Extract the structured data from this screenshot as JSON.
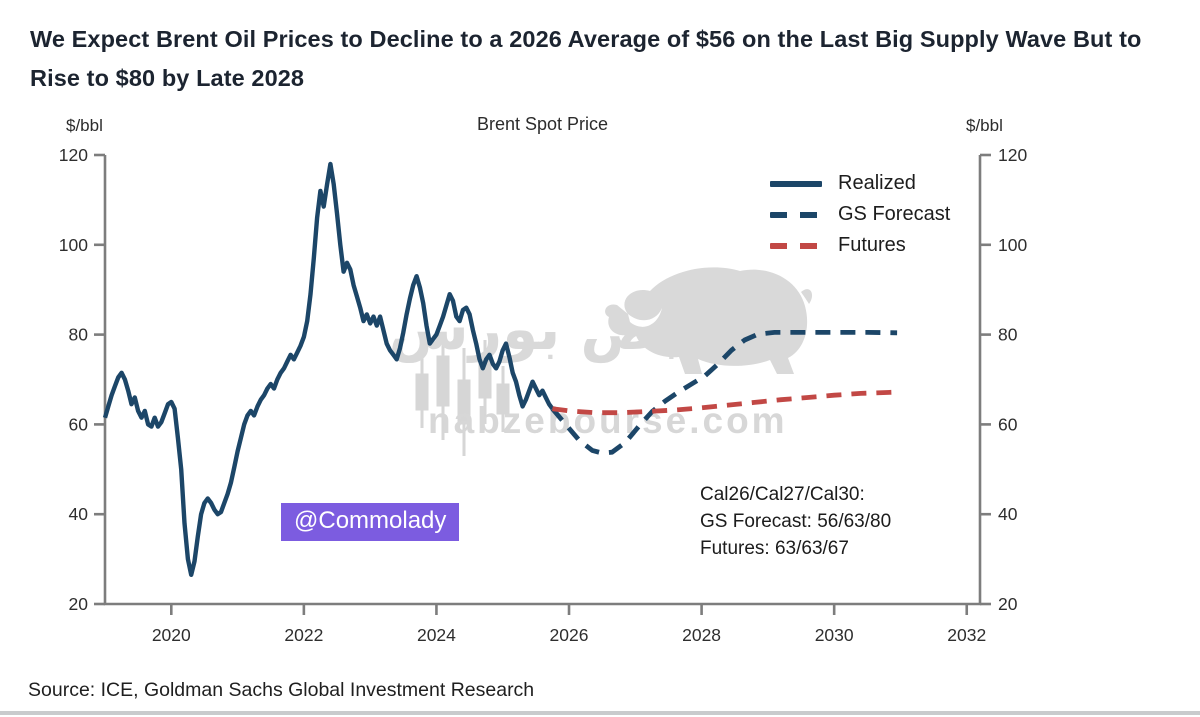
{
  "header": {
    "title": "We Expect Brent Oil Prices to Decline to a 2026 Average of $56 on the Last Big Supply Wave But to Rise to $80 by Late 2028"
  },
  "footer": {
    "source": "Source: ICE, Goldman Sachs Global Investment Research"
  },
  "watermark": {
    "handle": "@Commolady",
    "badge_color": "#7c5ce0",
    "brand_fa": "نبض بورس",
    "domain": "nabzebourse.com",
    "gray": "#d9d9d9"
  },
  "chart_data": {
    "type": "line",
    "title": "Brent Spot Price",
    "y_axis_label_left": "$/bbl",
    "y_axis_label_right": "$/bbl",
    "x_range": [
      2019.0,
      2032.2
    ],
    "y_range": [
      20,
      120
    ],
    "x_ticks": [
      2020,
      2022,
      2024,
      2026,
      2028,
      2030,
      2032
    ],
    "y_ticks": [
      20,
      40,
      60,
      80,
      100,
      120
    ],
    "axis_color": "#7d7d7d",
    "legend": [
      {
        "label": "Realized",
        "color": "#1c4668",
        "dash": "solid"
      },
      {
        "label": "GS Forecast",
        "color": "#1c4668",
        "dash": "dashed"
      },
      {
        "label": "Futures",
        "color": "#c24845",
        "dash": "dashed"
      }
    ],
    "annotation": {
      "line1": "Cal26/Cal27/Cal30:",
      "line2": "GS Forecast: 56/63/80",
      "line3": "Futures: 63/63/67"
    },
    "series": [
      {
        "name": "Realized",
        "color": "#1c4668",
        "dash": null,
        "width": 4.4,
        "points": [
          [
            2019.0,
            61.5
          ],
          [
            2019.05,
            64
          ],
          [
            2019.1,
            66.5
          ],
          [
            2019.15,
            68.5
          ],
          [
            2019.2,
            70.5
          ],
          [
            2019.25,
            71.5
          ],
          [
            2019.3,
            70
          ],
          [
            2019.35,
            67.5
          ],
          [
            2019.4,
            64.5
          ],
          [
            2019.45,
            66
          ],
          [
            2019.5,
            63
          ],
          [
            2019.55,
            61.5
          ],
          [
            2019.6,
            63
          ],
          [
            2019.65,
            60
          ],
          [
            2019.7,
            59.5
          ],
          [
            2019.75,
            61.5
          ],
          [
            2019.8,
            59.5
          ],
          [
            2019.85,
            60.5
          ],
          [
            2019.9,
            62.5
          ],
          [
            2019.95,
            64.5
          ],
          [
            2020.0,
            65
          ],
          [
            2020.05,
            63.5
          ],
          [
            2020.1,
            57
          ],
          [
            2020.15,
            50
          ],
          [
            2020.2,
            38
          ],
          [
            2020.25,
            30
          ],
          [
            2020.3,
            26.5
          ],
          [
            2020.35,
            29.5
          ],
          [
            2020.4,
            35
          ],
          [
            2020.45,
            40
          ],
          [
            2020.5,
            42.5
          ],
          [
            2020.55,
            43.5
          ],
          [
            2020.6,
            42.5
          ],
          [
            2020.65,
            41
          ],
          [
            2020.7,
            40
          ],
          [
            2020.75,
            40.5
          ],
          [
            2020.8,
            42.5
          ],
          [
            2020.85,
            44.5
          ],
          [
            2020.9,
            47
          ],
          [
            2020.95,
            50.5
          ],
          [
            2021.0,
            54
          ],
          [
            2021.05,
            57
          ],
          [
            2021.1,
            60
          ],
          [
            2021.15,
            62
          ],
          [
            2021.2,
            63
          ],
          [
            2021.25,
            62
          ],
          [
            2021.3,
            64
          ],
          [
            2021.35,
            65.5
          ],
          [
            2021.4,
            66.5
          ],
          [
            2021.45,
            68
          ],
          [
            2021.5,
            69
          ],
          [
            2021.55,
            68
          ],
          [
            2021.6,
            70
          ],
          [
            2021.65,
            71.5
          ],
          [
            2021.7,
            72.5
          ],
          [
            2021.75,
            74
          ],
          [
            2021.8,
            75.5
          ],
          [
            2021.85,
            74.5
          ],
          [
            2021.9,
            76
          ],
          [
            2021.95,
            77.5
          ],
          [
            2022.0,
            79.5
          ],
          [
            2022.05,
            83
          ],
          [
            2022.1,
            89
          ],
          [
            2022.15,
            97
          ],
          [
            2022.2,
            106
          ],
          [
            2022.25,
            112
          ],
          [
            2022.3,
            108.5
          ],
          [
            2022.35,
            113.5
          ],
          [
            2022.4,
            118
          ],
          [
            2022.45,
            113.5
          ],
          [
            2022.5,
            107
          ],
          [
            2022.55,
            100
          ],
          [
            2022.6,
            94
          ],
          [
            2022.65,
            96
          ],
          [
            2022.7,
            94.5
          ],
          [
            2022.75,
            91
          ],
          [
            2022.8,
            88.5
          ],
          [
            2022.85,
            86
          ],
          [
            2022.9,
            83
          ],
          [
            2022.95,
            84.5
          ],
          [
            2023.0,
            82.5
          ],
          [
            2023.05,
            84
          ],
          [
            2023.1,
            82
          ],
          [
            2023.15,
            84
          ],
          [
            2023.2,
            81
          ],
          [
            2023.25,
            78
          ],
          [
            2023.3,
            76.5
          ],
          [
            2023.35,
            75.5
          ],
          [
            2023.4,
            74.5
          ],
          [
            2023.45,
            77
          ],
          [
            2023.5,
            80.5
          ],
          [
            2023.55,
            84.5
          ],
          [
            2023.6,
            88
          ],
          [
            2023.65,
            91
          ],
          [
            2023.7,
            93
          ],
          [
            2023.75,
            90.5
          ],
          [
            2023.8,
            87
          ],
          [
            2023.85,
            82
          ],
          [
            2023.9,
            78
          ],
          [
            2023.95,
            79
          ],
          [
            2024.0,
            80
          ],
          [
            2024.05,
            82
          ],
          [
            2024.1,
            84
          ],
          [
            2024.15,
            86.5
          ],
          [
            2024.2,
            89
          ],
          [
            2024.25,
            87.5
          ],
          [
            2024.3,
            84
          ],
          [
            2024.35,
            83
          ],
          [
            2024.4,
            85.5
          ],
          [
            2024.45,
            86
          ],
          [
            2024.5,
            84.5
          ],
          [
            2024.55,
            81
          ],
          [
            2024.6,
            78
          ],
          [
            2024.65,
            74.5
          ],
          [
            2024.7,
            72.5
          ],
          [
            2024.75,
            74.5
          ],
          [
            2024.8,
            75.5
          ],
          [
            2024.85,
            73.5
          ],
          [
            2024.9,
            72.5
          ],
          [
            2024.95,
            74
          ],
          [
            2025.0,
            76.5
          ],
          [
            2025.05,
            78
          ],
          [
            2025.1,
            75
          ],
          [
            2025.15,
            71.5
          ],
          [
            2025.2,
            69.5
          ],
          [
            2025.25,
            66.5
          ],
          [
            2025.3,
            64
          ],
          [
            2025.35,
            65.5
          ],
          [
            2025.4,
            67.5
          ],
          [
            2025.45,
            69.5
          ],
          [
            2025.5,
            68
          ],
          [
            2025.55,
            66.5
          ],
          [
            2025.6,
            67.5
          ],
          [
            2025.65,
            66
          ],
          [
            2025.7,
            64.5
          ],
          [
            2025.75,
            63.5
          ]
        ]
      },
      {
        "name": "GS Forecast",
        "color": "#1c4668",
        "dash": "15 10",
        "width": 4.8,
        "points": [
          [
            2025.75,
            63.5
          ],
          [
            2025.95,
            60
          ],
          [
            2026.15,
            56.5
          ],
          [
            2026.35,
            54.2
          ],
          [
            2026.5,
            53.6
          ],
          [
            2026.65,
            53.8
          ],
          [
            2026.85,
            56
          ],
          [
            2027.05,
            59.5
          ],
          [
            2027.25,
            62.8
          ],
          [
            2027.45,
            65.2
          ],
          [
            2027.65,
            67.2
          ],
          [
            2027.85,
            69
          ],
          [
            2028.05,
            70.8
          ],
          [
            2028.25,
            73.5
          ],
          [
            2028.45,
            76.5
          ],
          [
            2028.65,
            78.8
          ],
          [
            2028.85,
            80.1
          ],
          [
            2029.1,
            80.5
          ],
          [
            2029.6,
            80.5
          ],
          [
            2030.1,
            80.5
          ],
          [
            2030.5,
            80.5
          ],
          [
            2030.95,
            80.4
          ]
        ]
      },
      {
        "name": "Futures",
        "color": "#c24845",
        "dash": "15 10",
        "width": 4.8,
        "points": [
          [
            2025.75,
            63.5
          ],
          [
            2026.0,
            63
          ],
          [
            2026.4,
            62.6
          ],
          [
            2026.8,
            62.6
          ],
          [
            2027.2,
            62.9
          ],
          [
            2027.6,
            63.2
          ],
          [
            2028.0,
            63.7
          ],
          [
            2028.4,
            64.3
          ],
          [
            2028.8,
            64.9
          ],
          [
            2029.2,
            65.5
          ],
          [
            2029.6,
            66
          ],
          [
            2030.0,
            66.5
          ],
          [
            2030.4,
            66.9
          ],
          [
            2030.95,
            67.2
          ]
        ]
      }
    ]
  }
}
